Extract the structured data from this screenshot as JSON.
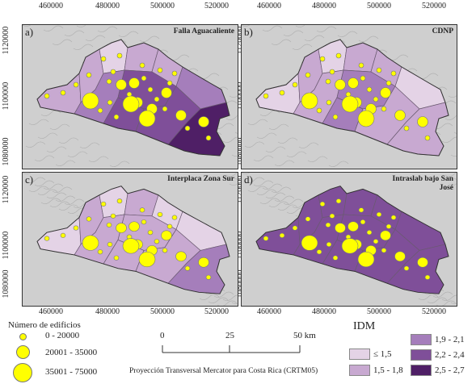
{
  "x_ticks": [
    "460000",
    "480000",
    "500000",
    "520000"
  ],
  "y_ticks_top": [
    "1120000",
    "1100000",
    "1080000"
  ],
  "y_ticks_bottom": [
    "1120000",
    "1100000",
    "1080000"
  ],
  "panels": [
    {
      "label": "a)",
      "title": "Falla Aguacaliente",
      "scenario": "a"
    },
    {
      "label": "b)",
      "title": "CDNP",
      "scenario": "b"
    },
    {
      "label": "c)",
      "title": "Interplaca Zona Sur",
      "scenario": "c"
    },
    {
      "label": "d)",
      "title": "Intraslab bajo San José",
      "scenario": "d"
    }
  ],
  "buildings_legend": {
    "title": "Número de edificios",
    "items": [
      "0 - 20000",
      "20001 - 35000",
      "35001 - 75000"
    ]
  },
  "scalebar": {
    "labels": [
      "0",
      "25",
      "50 km"
    ]
  },
  "projection": "Proyección Transversal Mercator para Costa Rica (CRTM05)",
  "idm_legend": {
    "title": "IDM",
    "items": [
      {
        "label": "≤ 1,5",
        "color": "#e4d3e6"
      },
      {
        "label": "1,5 - 1,8",
        "color": "#c8a9d1"
      },
      {
        "label": "1,9 - 2,1",
        "color": "#a57ebb"
      },
      {
        "label": "2,2 - 2,4",
        "color": "#7f4f99"
      },
      {
        "label": "2,5 - 2,7",
        "color": "#4f1f66"
      }
    ]
  },
  "colors": {
    "point": "#ffff00",
    "hillshade": "#cfcfcf"
  }
}
